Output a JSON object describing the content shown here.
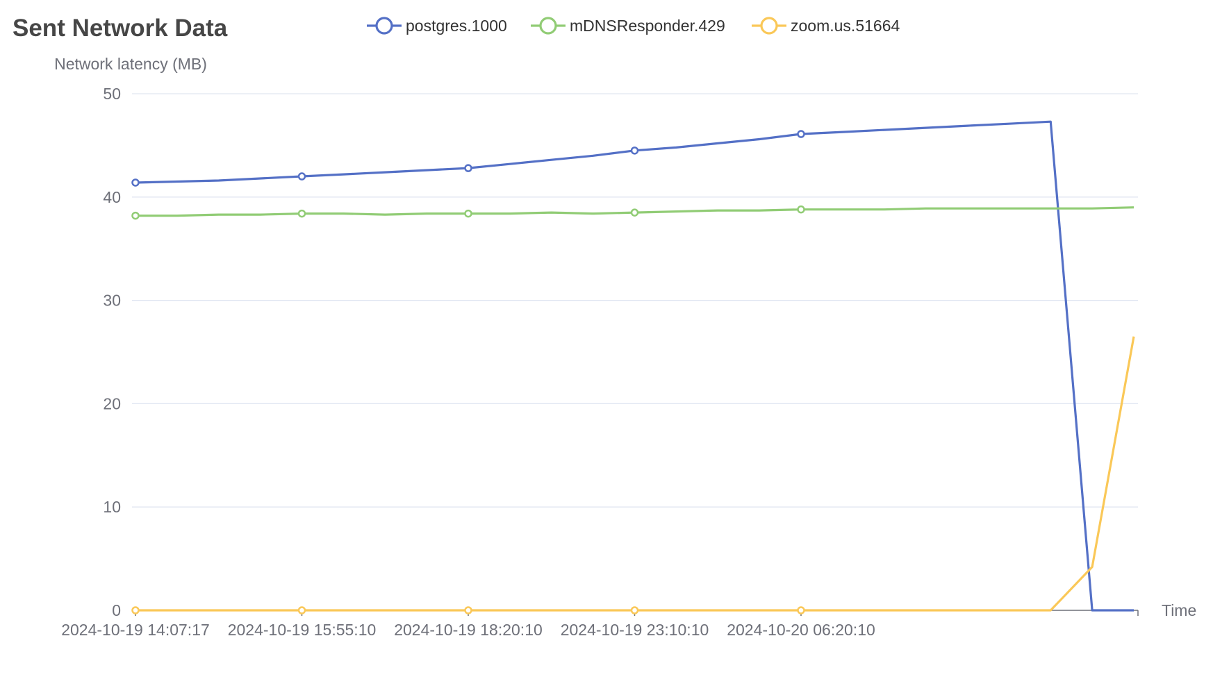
{
  "chart_data": {
    "type": "line",
    "title": "Sent Network Data",
    "ylabel": "Network latency (MB)",
    "xlabel": "Time",
    "ylim": [
      0,
      50
    ],
    "yticks": [
      0,
      10,
      20,
      30,
      40,
      50
    ],
    "x_tick_labels": [
      "2024-10-19 14:07:17",
      "2024-10-19 15:55:10",
      "2024-10-19 18:20:10",
      "2024-10-19 23:10:10",
      "2024-10-20 06:20:10"
    ],
    "x_count": 25,
    "legend": "top-center",
    "grid": true,
    "series": [
      {
        "name": "postgres.1000",
        "color": "#5470c6",
        "values": [
          41.4,
          41.5,
          41.6,
          41.8,
          42.0,
          42.2,
          42.4,
          42.6,
          42.8,
          43.2,
          43.6,
          44.0,
          44.5,
          44.8,
          45.2,
          45.6,
          46.1,
          46.3,
          46.5,
          46.7,
          46.9,
          47.1,
          47.3,
          0,
          0
        ],
        "markers": [
          0,
          4,
          8,
          12,
          16
        ]
      },
      {
        "name": "mDNSResponder.429",
        "color": "#91cc75",
        "values": [
          38.2,
          38.2,
          38.3,
          38.3,
          38.4,
          38.4,
          38.3,
          38.4,
          38.4,
          38.4,
          38.5,
          38.4,
          38.5,
          38.6,
          38.7,
          38.7,
          38.8,
          38.8,
          38.8,
          38.9,
          38.9,
          38.9,
          38.9,
          38.9,
          39.0
        ],
        "markers": [
          0,
          4,
          8,
          12,
          16
        ]
      },
      {
        "name": "zoom.us.51664",
        "color": "#fac858",
        "values": [
          0,
          0,
          0,
          0,
          0,
          0,
          0,
          0,
          0,
          0,
          0,
          0,
          0,
          0,
          0,
          0,
          0,
          0,
          0,
          0,
          0,
          0,
          0,
          4.2,
          26.5
        ],
        "markers": [
          0,
          4,
          8,
          12,
          16
        ]
      }
    ]
  }
}
